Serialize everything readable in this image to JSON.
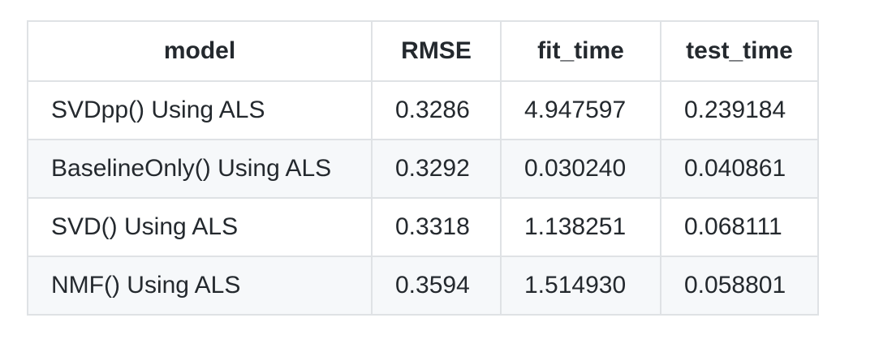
{
  "table": {
    "headers": [
      "model",
      "RMSE",
      "fit_time",
      "test_time"
    ],
    "rows": [
      [
        "SVDpp() Using ALS",
        "0.3286",
        "4.947597",
        "0.239184"
      ],
      [
        "BaselineOnly() Using ALS",
        "0.3292",
        "0.030240",
        "0.040861"
      ],
      [
        "SVD() Using ALS",
        "0.3318",
        "1.138251",
        "0.068111"
      ],
      [
        "NMF() Using ALS",
        "0.3594",
        "1.514930",
        "0.058801"
      ]
    ]
  },
  "colors": {
    "border": "#dfe2e5",
    "stripe": "#f6f8fa",
    "text": "#24292e"
  }
}
